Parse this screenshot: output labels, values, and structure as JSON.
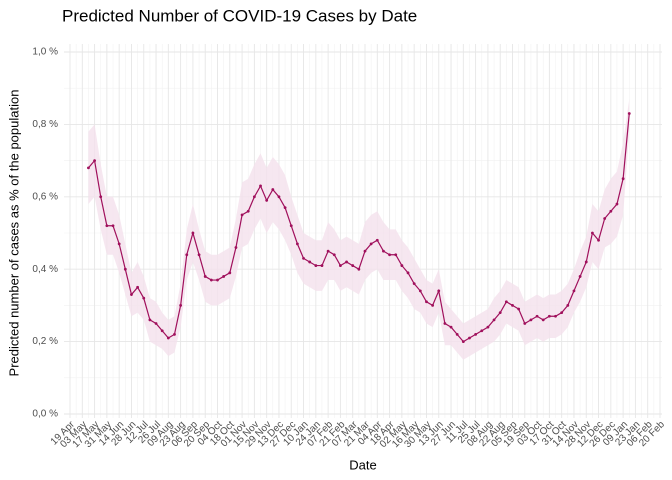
{
  "chart_data": {
    "type": "line",
    "title": "Predicted Number of COVID-19 Cases by Date",
    "xlabel": "Date",
    "ylabel": "Predicted number of cases as % of the population",
    "categories": [
      "19 Apr",
      null,
      "03 May",
      null,
      "17 May",
      null,
      "31 May",
      null,
      "14 Jun",
      null,
      "28 Jun",
      null,
      "12 Jul",
      null,
      "26 Jul",
      null,
      "09 Aug",
      null,
      "23 Aug",
      null,
      "06 Sep",
      null,
      "20 Sep",
      null,
      "04 Oct",
      null,
      "18 Oct",
      null,
      "01 Nov",
      null,
      "15 Nov",
      null,
      "29 Nov",
      null,
      "13 Dec",
      null,
      "27 Dec",
      null,
      "10 Jan",
      null,
      "24 Jan",
      null,
      "07 Feb",
      null,
      "21 Feb",
      null,
      "07 Mar",
      null,
      "21 Mar",
      null,
      "04 Apr",
      null,
      "18 Apr",
      null,
      "02 May",
      null,
      "16 May",
      null,
      "30 May",
      null,
      "13 Jun",
      null,
      "27 Jun",
      null,
      "11 Jul",
      null,
      "25 Jul",
      null,
      "08 Aug",
      null,
      "22 Aug",
      null,
      "05 Sep",
      null,
      "19 Sep",
      null,
      "03 Oct",
      null,
      "17 Oct",
      null,
      "31 Oct",
      null,
      "14 Nov",
      null,
      "28 Nov",
      null,
      "12 Dec",
      null,
      "26 Dec",
      null,
      "09 Jan",
      null,
      "23 Jan",
      null,
      "06 Feb",
      null,
      "20 Feb"
    ],
    "values": [
      null,
      null,
      null,
      0.68,
      0.7,
      0.6,
      0.52,
      0.52,
      0.47,
      0.4,
      0.33,
      0.35,
      0.32,
      0.26,
      0.25,
      0.23,
      0.21,
      0.22,
      0.3,
      0.44,
      0.5,
      0.44,
      0.38,
      0.37,
      0.37,
      0.38,
      0.39,
      0.46,
      0.55,
      0.56,
      0.6,
      0.63,
      0.59,
      0.62,
      0.6,
      0.57,
      0.52,
      0.47,
      0.43,
      0.42,
      0.41,
      0.41,
      0.45,
      0.44,
      0.41,
      0.42,
      0.41,
      0.4,
      0.45,
      0.47,
      0.48,
      0.45,
      0.44,
      0.44,
      0.41,
      0.39,
      0.36,
      0.34,
      0.31,
      0.3,
      0.34,
      0.25,
      0.24,
      0.22,
      0.2,
      0.21,
      0.22,
      0.23,
      0.24,
      0.26,
      0.28,
      0.31,
      0.3,
      0.29,
      0.25,
      0.26,
      0.27,
      0.26,
      0.27,
      0.27,
      0.28,
      0.3,
      0.34,
      0.38,
      0.42,
      0.5,
      0.48,
      0.54,
      0.56,
      0.58,
      0.65,
      0.83,
      null,
      null,
      null,
      null,
      null
    ],
    "lower": [
      null,
      null,
      null,
      0.58,
      0.6,
      0.51,
      0.44,
      0.44,
      0.39,
      0.33,
      0.27,
      0.28,
      0.26,
      0.2,
      0.19,
      0.18,
      0.16,
      0.17,
      0.24,
      0.37,
      0.42,
      0.37,
      0.31,
      0.3,
      0.3,
      0.31,
      0.32,
      0.38,
      0.46,
      0.47,
      0.51,
      0.54,
      0.5,
      0.53,
      0.51,
      0.48,
      0.44,
      0.39,
      0.36,
      0.35,
      0.34,
      0.34,
      0.37,
      0.37,
      0.34,
      0.35,
      0.34,
      0.33,
      0.37,
      0.39,
      0.4,
      0.37,
      0.37,
      0.37,
      0.34,
      0.32,
      0.29,
      0.28,
      0.25,
      0.24,
      0.28,
      0.19,
      0.19,
      0.17,
      0.15,
      0.16,
      0.17,
      0.18,
      0.19,
      0.2,
      0.22,
      0.25,
      0.24,
      0.23,
      0.19,
      0.2,
      0.21,
      0.2,
      0.21,
      0.21,
      0.22,
      0.24,
      0.28,
      0.31,
      0.35,
      0.42,
      0.4,
      0.46,
      0.47,
      0.49,
      0.55,
      0.78,
      null,
      null,
      null,
      null,
      null
    ],
    "upper": [
      null,
      null,
      null,
      0.78,
      0.8,
      0.69,
      0.6,
      0.6,
      0.55,
      0.47,
      0.39,
      0.42,
      0.38,
      0.32,
      0.31,
      0.28,
      0.26,
      0.27,
      0.36,
      0.51,
      0.58,
      0.51,
      0.45,
      0.44,
      0.44,
      0.45,
      0.46,
      0.54,
      0.64,
      0.65,
      0.69,
      0.72,
      0.68,
      0.71,
      0.69,
      0.66,
      0.6,
      0.55,
      0.5,
      0.49,
      0.48,
      0.48,
      0.53,
      0.51,
      0.48,
      0.49,
      0.48,
      0.47,
      0.53,
      0.55,
      0.56,
      0.53,
      0.51,
      0.51,
      0.48,
      0.46,
      0.43,
      0.4,
      0.37,
      0.36,
      0.4,
      0.31,
      0.29,
      0.27,
      0.25,
      0.26,
      0.27,
      0.28,
      0.29,
      0.32,
      0.34,
      0.37,
      0.36,
      0.35,
      0.31,
      0.32,
      0.33,
      0.32,
      0.33,
      0.33,
      0.34,
      0.36,
      0.4,
      0.45,
      0.49,
      0.58,
      0.56,
      0.62,
      0.65,
      0.67,
      0.75,
      0.87,
      null,
      null,
      null,
      null,
      null
    ],
    "color": "#a0105c",
    "band_color": "#f4e1ec",
    "ylim": [
      0,
      1
    ],
    "yticks": [
      {
        "value": 0,
        "label": "0,0 %"
      },
      {
        "value": 0.2,
        "label": "0,2 %"
      },
      {
        "value": 0.4,
        "label": "0,4 %"
      },
      {
        "value": 0.6,
        "label": "0,6 %"
      },
      {
        "value": 0.8,
        "label": "0,8 %"
      },
      {
        "value": 1,
        "label": "1,0 %"
      }
    ],
    "grid": true
  }
}
